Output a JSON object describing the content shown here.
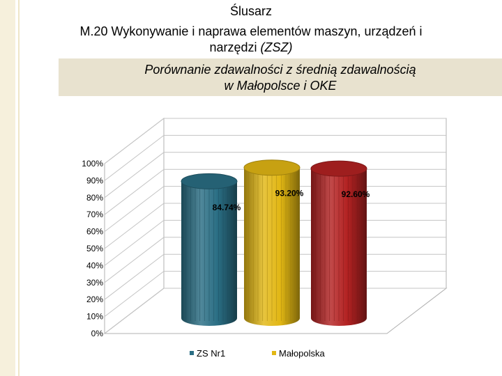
{
  "header": {
    "title_line1": "Ślusarz",
    "title_line2": "M.20 Wykonywanie i naprawa elementów maszyn, urządzeń i",
    "title_line3_plain": "narzędzi ",
    "title_line3_italic": "(ZSZ)",
    "subtitle_line1": "Porównanie zdawalności z średnią zdawalnością",
    "subtitle_line2": "w Małopolsce i OKE"
  },
  "chart_data": {
    "type": "bar",
    "style": "3d-cylinder",
    "categories": [
      ""
    ],
    "series": [
      {
        "name": "ZS Nr1",
        "values": [
          84.74
        ],
        "label": "84.74%",
        "color": "#2a6e84"
      },
      {
        "name": "Małopolska",
        "values": [
          93.2
        ],
        "label": "93.20%",
        "color": "#e2b714"
      },
      {
        "name": "",
        "values": [
          92.6
        ],
        "label": "92.60%",
        "color": "#b32222"
      }
    ],
    "y_ticks": [
      "0%",
      "10%",
      "20%",
      "30%",
      "40%",
      "50%",
      "60%",
      "70%",
      "80%",
      "90%",
      "100%"
    ],
    "ylim": [
      0,
      100
    ],
    "grid": true,
    "legend_position": "bottom"
  }
}
